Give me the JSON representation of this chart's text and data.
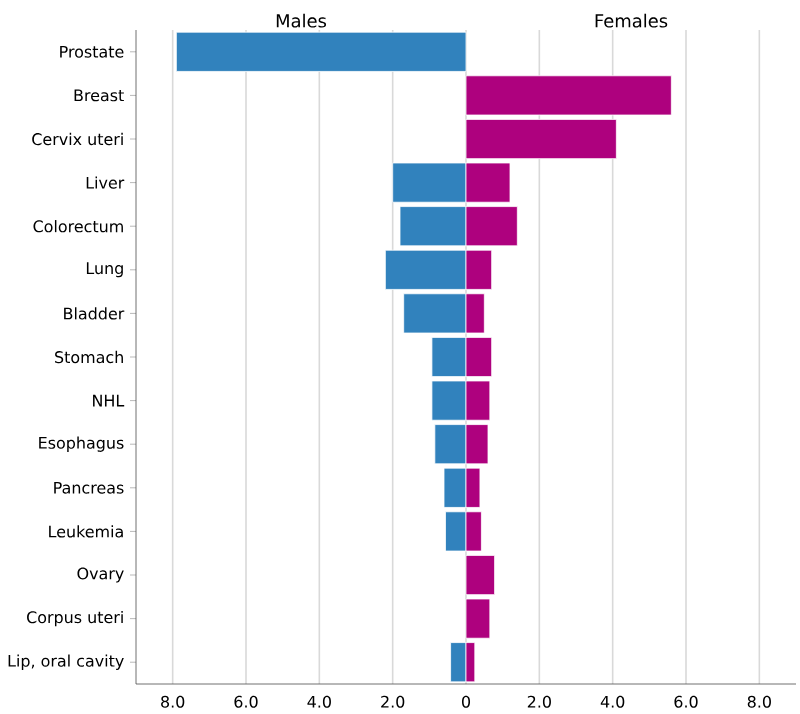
{
  "chart_data": {
    "type": "bar",
    "orientation": "horizontal",
    "stacked": true,
    "categories": [
      "Prostate",
      "Breast",
      "Cervix uteri",
      "Liver",
      "Colorectum",
      "Lung",
      "Bladder",
      "Stomach",
      "NHL",
      "Esophagus",
      "Pancreas",
      "Leukemia",
      "Ovary",
      "Corpus uteri",
      "Lip, oral cavity"
    ],
    "series": [
      {
        "name": "Males",
        "color": "#3182bd",
        "values": [
          -7.9,
          null,
          null,
          -2.0,
          -1.8,
          -2.2,
          -1.7,
          -0.93,
          -0.93,
          -0.85,
          -0.6,
          -0.56,
          null,
          null,
          -0.42
        ]
      },
      {
        "name": "Females",
        "color": "#ae017e",
        "values": [
          null,
          5.6,
          4.1,
          1.2,
          1.4,
          0.7,
          0.5,
          0.7,
          0.65,
          0.6,
          0.38,
          0.42,
          0.78,
          0.65,
          0.24
        ]
      }
    ],
    "xlim": [
      -9,
      9
    ],
    "xticks": [
      {
        "value": -8,
        "label": "8.0"
      },
      {
        "value": -6,
        "label": "6.0"
      },
      {
        "value": -4,
        "label": "4.0"
      },
      {
        "value": -2,
        "label": "2.0"
      },
      0,
      {
        "value": 2,
        "label": "2.0"
      },
      {
        "value": 4,
        "label": "4.0"
      },
      {
        "value": 6,
        "label": "6.0"
      },
      {
        "value": 8,
        "label": "8.0"
      }
    ],
    "grid": "x"
  }
}
